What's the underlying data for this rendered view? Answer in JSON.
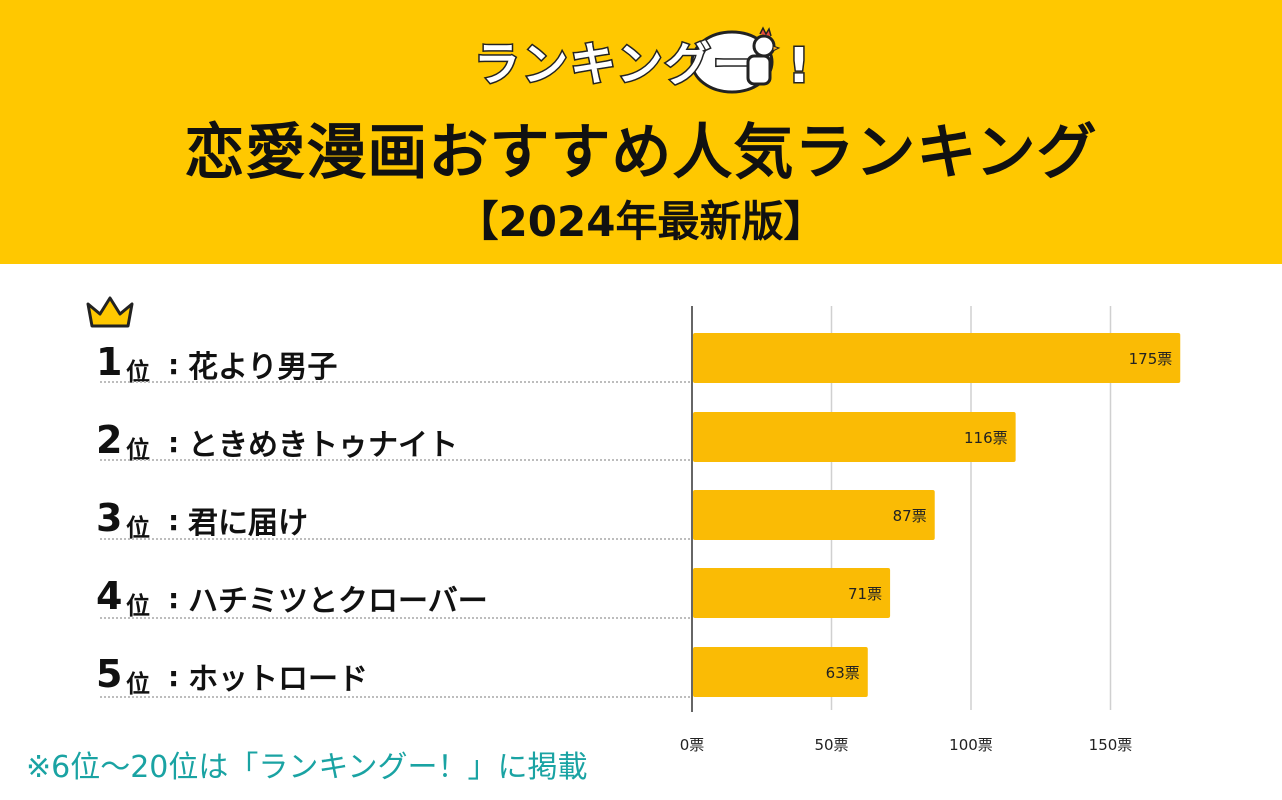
{
  "header": {
    "logo_text": "ランキングー",
    "logo_exclaim": "!",
    "title": "恋愛漫画おすすめ人気ランキング",
    "subtitle": "【2024年最新版】"
  },
  "colors": {
    "accent": "#FFC800",
    "bar": "#FABB05",
    "note": "#1AA3A3"
  },
  "ranking": [
    {
      "rank": "1",
      "suffix": "位",
      "colon": ":",
      "title": "花より男子"
    },
    {
      "rank": "2",
      "suffix": "位",
      "colon": ":",
      "title": "ときめきトゥナイト"
    },
    {
      "rank": "3",
      "suffix": "位",
      "colon": ":",
      "title": "君に届け"
    },
    {
      "rank": "4",
      "suffix": "位",
      "colon": ":",
      "title": "ハチミツとクローバー"
    },
    {
      "rank": "5",
      "suffix": "位",
      "colon": ":",
      "title": "ホットロード"
    }
  ],
  "chart_data": {
    "type": "bar",
    "orientation": "horizontal",
    "categories": [
      "花より男子",
      "ときめきトゥナイト",
      "君に届け",
      "ハチミツとクローバー",
      "ホットロード"
    ],
    "values": [
      175,
      116,
      87,
      71,
      63
    ],
    "value_labels": [
      "175票",
      "116票",
      "87票",
      "71票",
      "63票"
    ],
    "xlim": [
      0,
      175
    ],
    "xticks": [
      0,
      50,
      100,
      150
    ],
    "xtick_labels": [
      "0票",
      "50票",
      "100票",
      "150票"
    ],
    "grid": true
  },
  "footer": {
    "note": "※6位〜20位は「ランキングー！」に掲載"
  }
}
